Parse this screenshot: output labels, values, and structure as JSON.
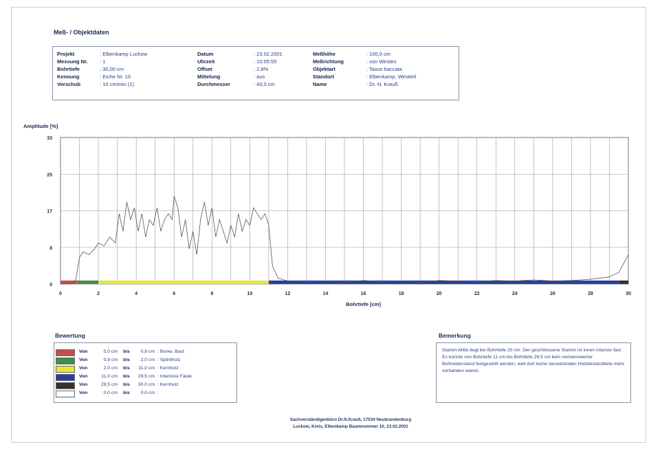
{
  "document_title": "Meß- / Objektdaten",
  "info": {
    "col1": [
      {
        "label": "Projekt",
        "value": ": Elbenkamp Luckow"
      },
      {
        "label": "Messung Nr.",
        "value": ": 1"
      },
      {
        "label": "Bohrtiefe",
        "value": ": 30,00 cm"
      },
      {
        "label": "Kennung",
        "value": ": Eiche Nr. 10"
      },
      {
        "label": "Vorschub",
        "value": ": 10 cm/min (1)"
      }
    ],
    "col2": [
      {
        "label": "Datum",
        "value": ": 23.02.2001"
      },
      {
        "label": "Uhrzeit",
        "value": ": 10:05:55"
      },
      {
        "label": "Offset",
        "value": ": 2,8%"
      },
      {
        "label": "Mittelung",
        "value": ": aus"
      },
      {
        "label": "Durchmesser",
        "value": ": 40,0 cm"
      }
    ],
    "col3": [
      {
        "label": "Meßhöhe",
        "value": ": 100,0 cm"
      },
      {
        "label": "Meßrichtung",
        "value": ": von Westen"
      },
      {
        "label": "Objektart",
        "value": ": Taxus baccata"
      },
      {
        "label": "Standort",
        "value": ": Elbenkamp, Westteil"
      },
      {
        "label": "Name",
        "value": ": Dr. N. Krauß"
      }
    ]
  },
  "chart_data": {
    "type": "line",
    "ylabel": "Amplitude [%]",
    "xlabel": "Bohrtiefe [cm]",
    "xlim": [
      0,
      30
    ],
    "ylim": [
      0,
      25
    ],
    "grid": true,
    "y_ticks": [
      "0",
      "8",
      "17",
      "25",
      "33"
    ],
    "x_ticks": [
      "0",
      "2",
      "4",
      "6",
      "8",
      "10",
      "12",
      "14",
      "16",
      "18",
      "20",
      "22",
      "24",
      "26",
      "28",
      "30"
    ],
    "series": [
      {
        "x": [
          0,
          0.5,
          0.8,
          1.0,
          1.2,
          1.5,
          1.8,
          2.0,
          2.3,
          2.6,
          2.9,
          3.1,
          3.3,
          3.5,
          3.7,
          3.9,
          4.1,
          4.3,
          4.5,
          4.7,
          4.9,
          5.1,
          5.3,
          5.5,
          5.7,
          5.9,
          6.0,
          6.2,
          6.4,
          6.6,
          6.8,
          7.0,
          7.2,
          7.4,
          7.6,
          7.8,
          8.0,
          8.2,
          8.4,
          8.6,
          8.8,
          9.0,
          9.2,
          9.4,
          9.6,
          9.8,
          10.0,
          10.2,
          10.4,
          10.6,
          10.8,
          11.0,
          11.2,
          11.5,
          12,
          13,
          14,
          15,
          16,
          17,
          18,
          19,
          20,
          21,
          22,
          23,
          24,
          25,
          26,
          27,
          28,
          29,
          29.5,
          30
        ],
        "values": [
          0,
          0,
          0.5,
          4.5,
          5.5,
          5,
          6,
          7,
          6.5,
          8,
          7,
          12,
          9,
          14,
          11,
          13,
          9,
          12,
          8,
          11,
          10,
          13,
          9,
          11,
          12,
          11,
          15,
          13,
          8,
          11,
          6,
          9,
          5,
          11,
          14,
          10,
          13,
          8,
          11,
          9,
          7,
          10,
          8,
          12,
          9,
          11,
          10,
          13,
          12,
          11,
          12,
          10,
          3,
          1,
          0.5,
          0.4,
          0.5,
          0.3,
          0.6,
          0.4,
          0.5,
          0.3,
          0.6,
          0.5,
          0.4,
          0.6,
          0.5,
          0.7,
          0.5,
          0.6,
          0.8,
          1.2,
          2,
          5
        ]
      }
    ],
    "bands": [
      {
        "from": 0,
        "to": 0.9,
        "color": "#c0504d"
      },
      {
        "from": 0.9,
        "to": 2.0,
        "color": "#3f8f4a"
      },
      {
        "from": 2.0,
        "to": 11.0,
        "color": "#e6e63c"
      },
      {
        "from": 11.0,
        "to": 29.5,
        "color": "#2a3f9e"
      },
      {
        "from": 29.5,
        "to": 30.0,
        "color": "#3a3028"
      }
    ]
  },
  "bewertung": {
    "title": "Bewertung",
    "rows": [
      {
        "color": "#c0504d",
        "von": "Von",
        "from": "0,0 cm",
        "bis": "bis",
        "to": "0,9 cm",
        "desc": ": Borke, Bast"
      },
      {
        "color": "#3f8f4a",
        "von": "Von",
        "from": "0,9 cm",
        "bis": "bis",
        "to": "2,0 cm",
        "desc": ": Splintholz"
      },
      {
        "color": "#e6e63c",
        "von": "Von",
        "from": "2,0 cm",
        "bis": "bis",
        "to": "11,0 cm",
        "desc": ": Kernholz"
      },
      {
        "color": "#2a3f9e",
        "von": "Von",
        "from": "11,0 cm",
        "bis": "bis",
        "to": "29,5 cm",
        "desc": ": Intensive Fäule"
      },
      {
        "color": "#3a3028",
        "von": "Von",
        "from": "29,5 cm",
        "bis": "bis",
        "to": "30,0 cm",
        "desc": ": Kernholz"
      },
      {
        "color": "#ffffff",
        "von": "Von",
        "from": "0,0 cm",
        "bis": "bis",
        "to": "0,0 cm",
        "desc": ":"
      }
    ]
  },
  "bemerkung": {
    "title": "Bemerkung",
    "text": "Stamm-Mitte liegt bei Bohrtiefe 20 cm. Der geschlossene Stamm ist innen intensiv faul. Es konnte von Bohrtiefe 11 cm bis Bohrtiefe 29,5 cm kein nennenswerter Bohrwiderstand festgestellt werden, weil dort keine zersetzenden Holzbestandteile mehr vorhanden waren."
  },
  "footer": {
    "line1": "Sachverständigenbüro Dr.N.Krauß, 17034 Neubrandenburg",
    "line2": "Luckow, Kreis, Elbenkamp Baumnummer 10, 23.02.2001"
  },
  "colors": {
    "ink": "#2b3c8a",
    "grid": "#9a9a9a",
    "curve": "#555555"
  }
}
